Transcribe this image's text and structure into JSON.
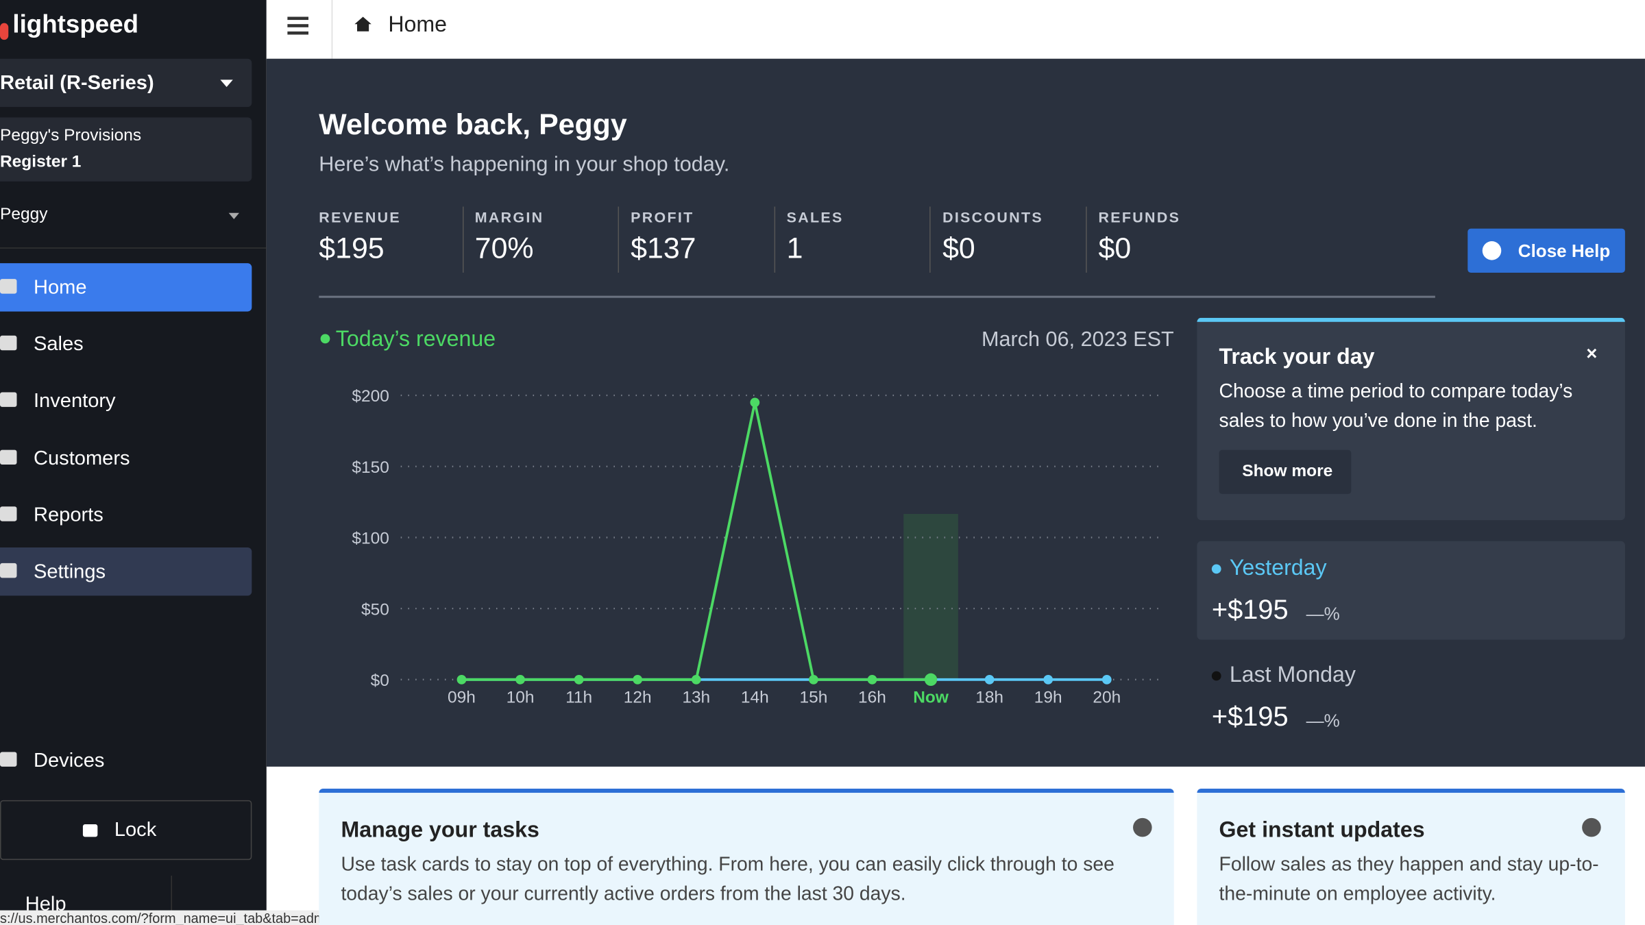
{
  "sidebar": {
    "brand": "lightspeed",
    "store": "Retail (R-Series)",
    "location": "Peggy's Provisions",
    "register": "Register 1",
    "user": "Peggy",
    "nav": [
      "Home",
      "Sales",
      "Inventory",
      "Customers",
      "Reports",
      "Settings"
    ],
    "devices": "Devices",
    "lock": "Lock",
    "help": "Help"
  },
  "status_url": "s://us.merchantos.com/?form_name=ui_tab&tab=admin",
  "header": {
    "title": "Home"
  },
  "welcome": {
    "title": "Welcome back, Peggy",
    "subtitle": "Here’s what’s happening in your shop today."
  },
  "stats": [
    {
      "label": "REVENUE",
      "value": "$195"
    },
    {
      "label": "MARGIN",
      "value": "70%"
    },
    {
      "label": "PROFIT",
      "value": "$137"
    },
    {
      "label": "SALES",
      "value": "1"
    },
    {
      "label": "DISCOUNTS",
      "value": "$0"
    },
    {
      "label": "REFUNDS",
      "value": "$0"
    }
  ],
  "close_help": "Close Help",
  "chart_data": {
    "type": "line",
    "date": "March 06, 2023 EST",
    "categories": [
      "09h",
      "10h",
      "11h",
      "12h",
      "13h",
      "14h",
      "15h",
      "16h",
      "Now",
      "18h",
      "19h",
      "20h"
    ],
    "series": [
      {
        "name": "Today’s revenue",
        "color": "#4cd964",
        "values": [
          0,
          0,
          0,
          0,
          0,
          195,
          0,
          0,
          0,
          null,
          null,
          null
        ]
      },
      {
        "name": "Yesterday",
        "color": "#5bc8f5",
        "values": [
          0,
          0,
          0,
          0,
          0,
          0,
          0,
          0,
          0,
          0,
          0,
          0
        ]
      }
    ],
    "ylim": [
      0,
      200
    ],
    "yticks": [
      {
        "value": 0,
        "label": "$0"
      },
      {
        "value": 50,
        "label": "$50"
      },
      {
        "value": 100,
        "label": "$100"
      },
      {
        "value": 150,
        "label": "$150"
      },
      {
        "value": 200,
        "label": "$200"
      }
    ],
    "grid": true
  },
  "track_card": {
    "title": "Track your day",
    "body": "Choose a time period to compare today’s sales to how you’ve done in the past.",
    "button": "Show more"
  },
  "comparisons": [
    {
      "label": "Yesterday",
      "amount": "+$195",
      "change": "—%"
    },
    {
      "label": "Last Monday",
      "amount": "+$195",
      "change": "—%"
    }
  ],
  "tasks_card": {
    "title": "Manage your tasks",
    "body": "Use task cards to stay on top of everything. From here, you can easily click through to see today’s sales or your currently active orders from the last 30 days."
  },
  "updates_card": {
    "title": "Get instant updates",
    "body": "Follow sales as they happen and stay up-to-the-minute on employee activity."
  }
}
